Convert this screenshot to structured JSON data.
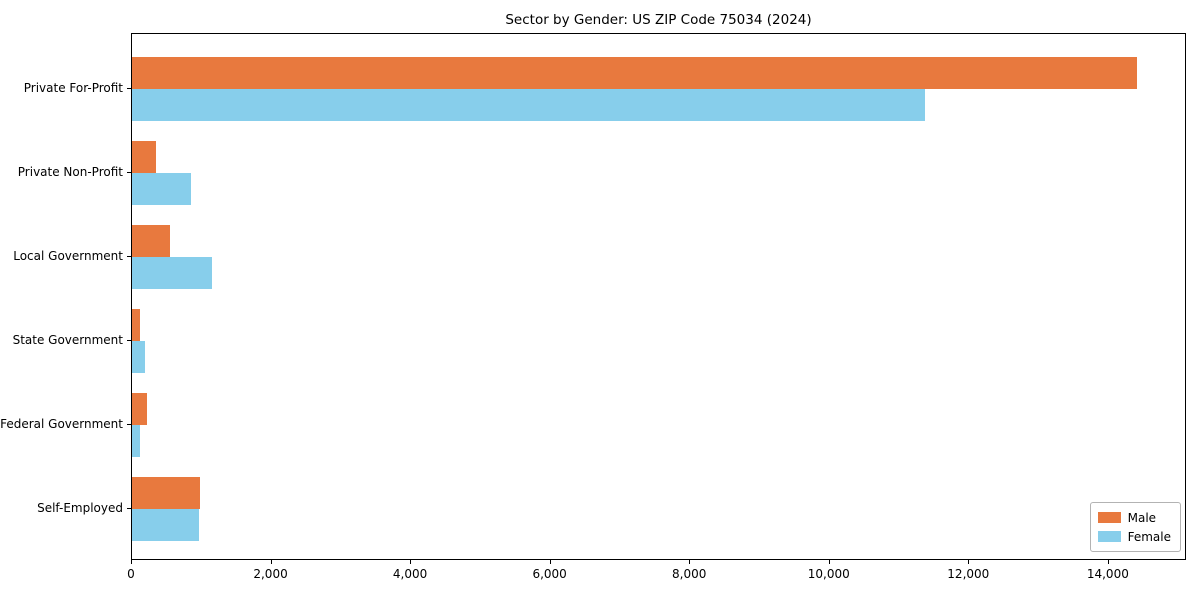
{
  "chart_data": {
    "type": "bar",
    "orientation": "horizontal",
    "title": "Sector by Gender: US ZIP Code 75034 (2024)",
    "categories": [
      "Private For-Profit",
      "Private Non-Profit",
      "Local Government",
      "State Government",
      "Federal Government",
      "Self-Employed"
    ],
    "series": [
      {
        "name": "Male",
        "color": "#e8793e",
        "values": [
          14400,
          350,
          540,
          110,
          220,
          980
        ]
      },
      {
        "name": "Female",
        "color": "#87ceeb",
        "values": [
          11360,
          840,
          1150,
          185,
          110,
          960
        ]
      }
    ],
    "xlabel": "",
    "ylabel": "",
    "xlim": [
      0,
      15120
    ],
    "xticks": [
      0,
      2000,
      4000,
      6000,
      8000,
      10000,
      12000,
      14000
    ],
    "xtick_labels": [
      "0",
      "2,000",
      "4,000",
      "6,000",
      "8,000",
      "10,000",
      "12,000",
      "14,000"
    ],
    "legend": {
      "position": "lower right",
      "entries": [
        "Male",
        "Female"
      ]
    },
    "grid": false,
    "background": "#ffffff",
    "axis_color": "#000000"
  }
}
